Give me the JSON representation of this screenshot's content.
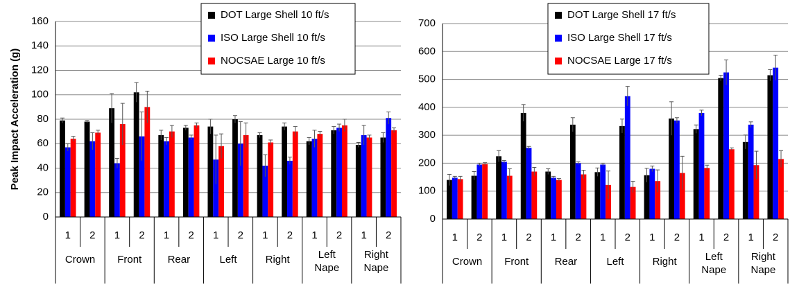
{
  "chart_data": [
    {
      "type": "bar",
      "y_label": "Peak Impact Acceleration (g)",
      "categories": [
        "1",
        "2",
        "1",
        "2",
        "1",
        "2",
        "1",
        "2",
        "1",
        "2",
        "1",
        "2",
        "1",
        "2"
      ],
      "groups": [
        "Crown",
        "Front",
        "Rear",
        "Left",
        "Right",
        "Left Nape",
        "Right Nape"
      ],
      "ylim": [
        0,
        160
      ],
      "yticks": [
        0,
        20,
        40,
        60,
        80,
        100,
        120,
        140,
        160
      ],
      "grid": true,
      "series": [
        {
          "name": "DOT Large Shell 10 ft/s",
          "color": "#000000",
          "values": [
            79,
            78,
            89,
            102,
            67,
            73,
            74,
            80,
            67,
            74,
            62,
            71,
            59,
            65
          ],
          "errors": [
            2,
            1,
            12,
            8,
            4,
            2,
            6,
            3,
            2,
            3,
            3,
            3,
            2,
            4
          ]
        },
        {
          "name": "ISO Large Shell 10 ft/s",
          "color": "#0000ff",
          "values": [
            57,
            62,
            44,
            66,
            62,
            65,
            47,
            60,
            42,
            46,
            64,
            73,
            67,
            81
          ],
          "errors": [
            3,
            7,
            4,
            20,
            3,
            2,
            20,
            18,
            9,
            3,
            7,
            3,
            8,
            5
          ]
        },
        {
          "name": "NOCSAE Large 10 ft/s",
          "color": "#ff0000",
          "values": [
            64,
            69,
            76,
            90,
            70,
            75,
            58,
            67,
            61,
            70,
            68,
            75,
            65,
            71
          ],
          "errors": [
            2,
            2,
            17,
            13,
            5,
            2,
            10,
            10,
            2,
            4,
            2,
            5,
            2,
            2
          ]
        }
      ]
    },
    {
      "type": "bar",
      "categories": [
        "1",
        "2",
        "1",
        "2",
        "1",
        "2",
        "1",
        "2",
        "1",
        "2",
        "1",
        "2",
        "1",
        "2"
      ],
      "groups": [
        "Crown",
        "Front",
        "Rear",
        "Left",
        "Right",
        "Left Nape",
        "Right Nape"
      ],
      "ylim": [
        0,
        700
      ],
      "yticks": [
        0,
        100,
        200,
        300,
        400,
        500,
        600,
        700
      ],
      "grid": true,
      "series": [
        {
          "name": "DOT Large Shell 17 ft/s",
          "color": "#000000",
          "values": [
            140,
            155,
            225,
            380,
            170,
            338,
            168,
            333,
            157,
            360,
            322,
            505,
            276,
            515
          ],
          "errors": [
            20,
            15,
            20,
            30,
            10,
            25,
            15,
            25,
            25,
            60,
            15,
            10,
            25,
            20
          ]
        },
        {
          "name": "ISO Large Shell 17 ft/s",
          "color": "#0000ff",
          "values": [
            148,
            195,
            205,
            255,
            148,
            200,
            195,
            440,
            180,
            353,
            380,
            525,
            338,
            542
          ],
          "errors": [
            5,
            5,
            5,
            5,
            5,
            5,
            5,
            35,
            10,
            10,
            10,
            45,
            10,
            45
          ]
        },
        {
          "name": "NOCSAE Large 17 ft/s",
          "color": "#ff0000",
          "values": [
            143,
            197,
            155,
            170,
            140,
            160,
            122,
            115,
            136,
            165,
            183,
            250,
            193,
            215
          ],
          "errors": [
            10,
            5,
            25,
            15,
            5,
            15,
            50,
            20,
            40,
            60,
            10,
            5,
            50,
            30
          ]
        }
      ]
    }
  ]
}
